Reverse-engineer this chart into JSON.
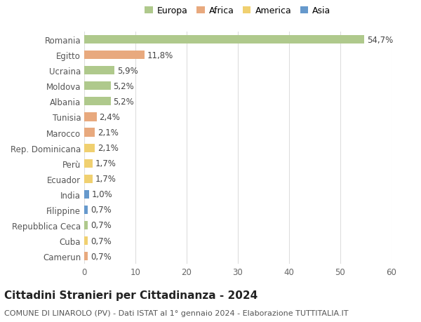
{
  "categories": [
    "Romania",
    "Egitto",
    "Ucraina",
    "Moldova",
    "Albania",
    "Tunisia",
    "Marocco",
    "Rep. Dominicana",
    "Perù",
    "Ecuador",
    "India",
    "Filippine",
    "Repubblica Ceca",
    "Cuba",
    "Camerun"
  ],
  "values": [
    54.7,
    11.8,
    5.9,
    5.2,
    5.2,
    2.4,
    2.1,
    2.1,
    1.7,
    1.7,
    1.0,
    0.7,
    0.7,
    0.7,
    0.7
  ],
  "labels": [
    "54,7%",
    "11,8%",
    "5,9%",
    "5,2%",
    "5,2%",
    "2,4%",
    "2,1%",
    "2,1%",
    "1,7%",
    "1,7%",
    "1,0%",
    "0,7%",
    "0,7%",
    "0,7%",
    "0,7%"
  ],
  "continents": [
    "Europa",
    "Africa",
    "Europa",
    "Europa",
    "Europa",
    "Africa",
    "Africa",
    "America",
    "America",
    "America",
    "Asia",
    "Asia",
    "Europa",
    "America",
    "Africa"
  ],
  "continent_colors": {
    "Europa": "#afc98c",
    "Africa": "#e8a97e",
    "America": "#f0d070",
    "Asia": "#6699cc"
  },
  "legend_items": [
    "Europa",
    "Africa",
    "America",
    "Asia"
  ],
  "legend_colors": [
    "#afc98c",
    "#e8a97e",
    "#f0d070",
    "#6699cc"
  ],
  "title": "Cittadini Stranieri per Cittadinanza - 2024",
  "subtitle": "COMUNE DI LINAROLO (PV) - Dati ISTAT al 1° gennaio 2024 - Elaborazione TUTTITALIA.IT",
  "xlim": [
    0,
    60
  ],
  "xticks": [
    0,
    10,
    20,
    30,
    40,
    50,
    60
  ],
  "background_color": "#ffffff",
  "grid_color": "#dddddd",
  "bar_height": 0.55,
  "label_fontsize": 8.5,
  "tick_fontsize": 8.5,
  "title_fontsize": 11,
  "subtitle_fontsize": 8
}
